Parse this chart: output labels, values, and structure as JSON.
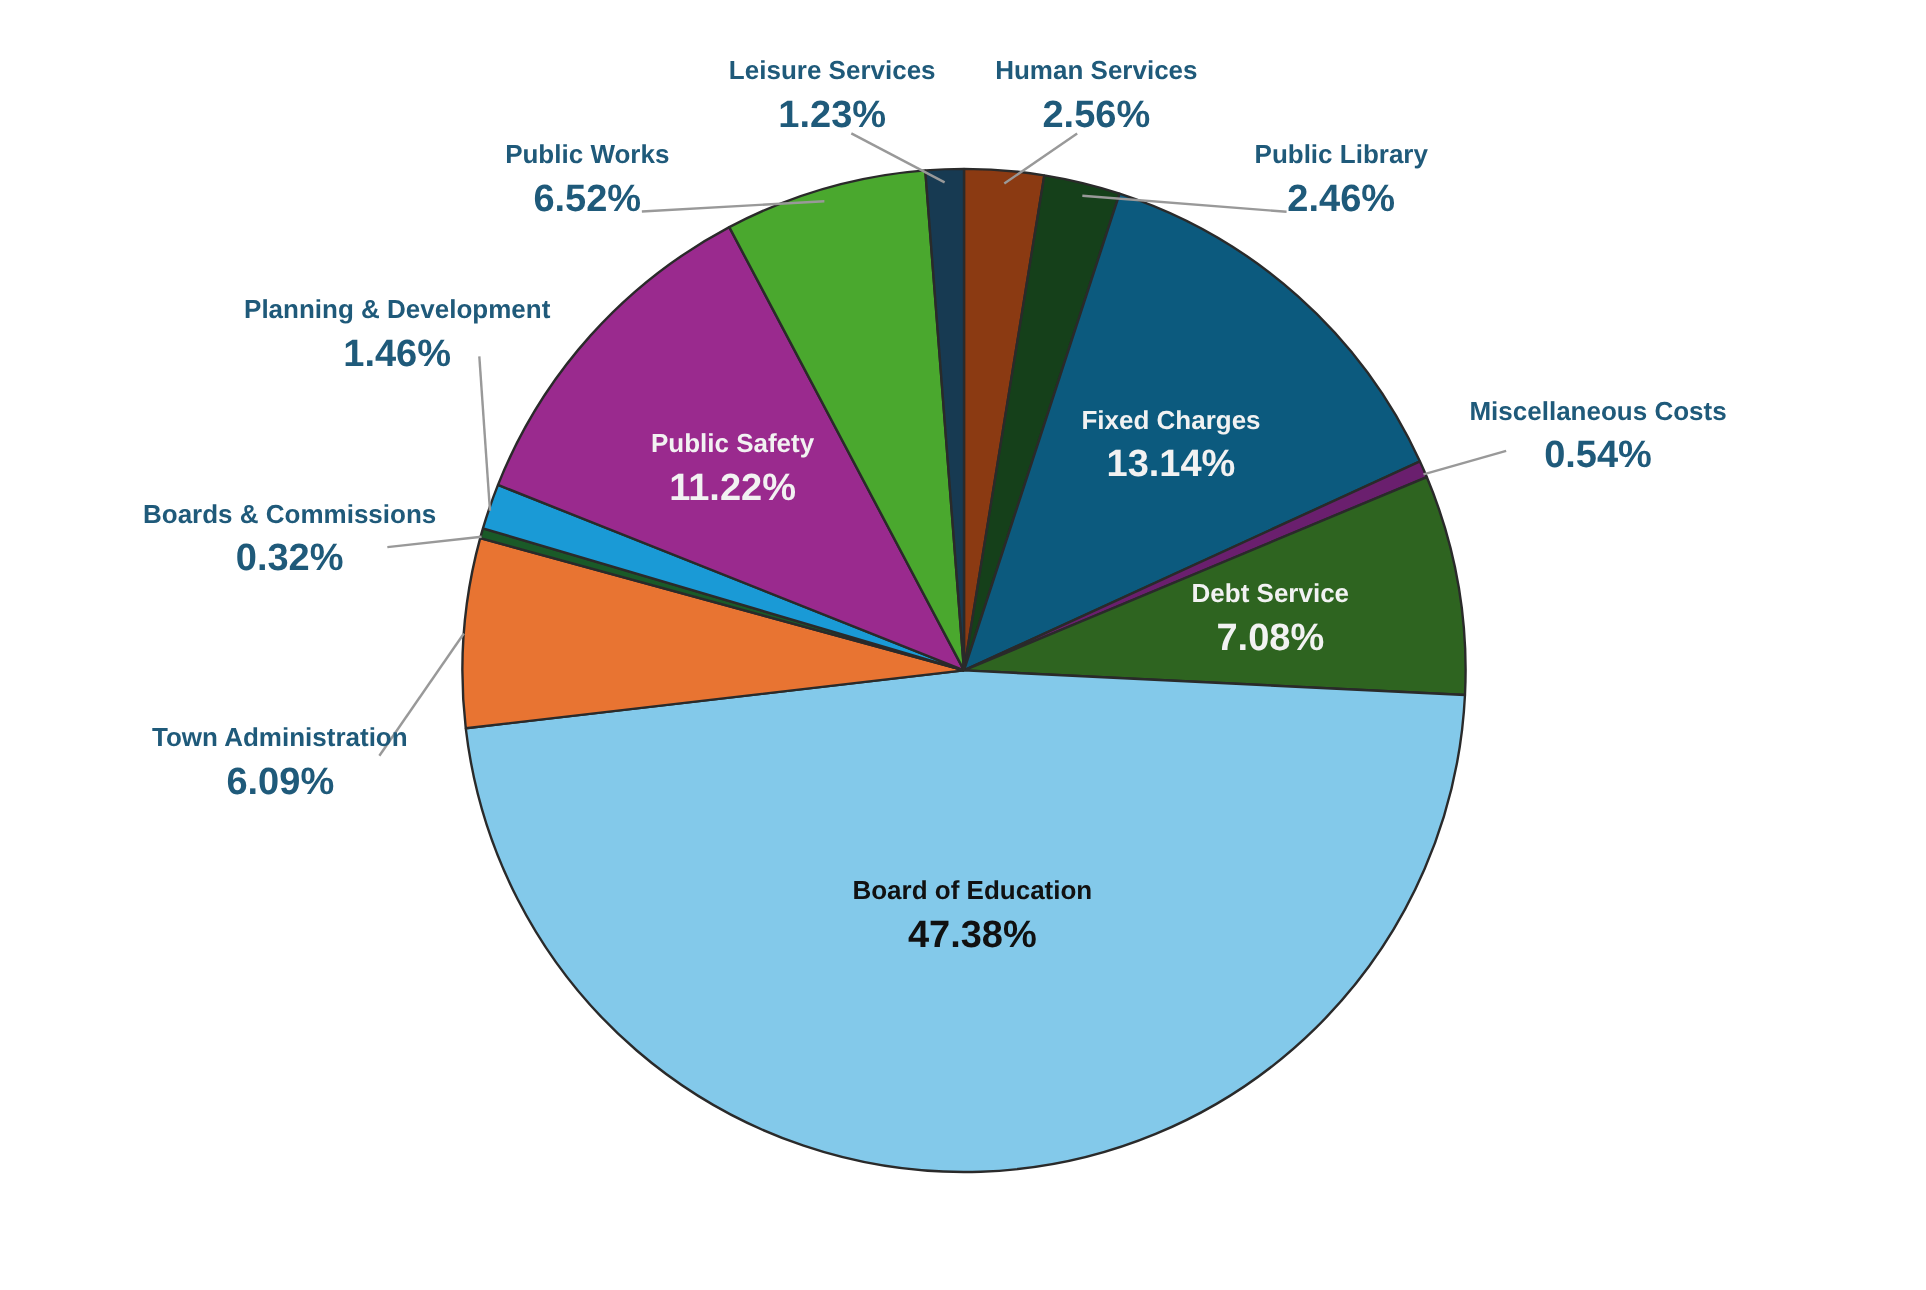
{
  "chart_data": {
    "type": "pie",
    "categories": [
      "Human Services",
      "Public Library",
      "Fixed Charges",
      "Miscellaneous Costs",
      "Debt Service",
      "Board of Education",
      "Town Administration",
      "Boards & Commissions",
      "Planning & Development",
      "Public Safety",
      "Public Works",
      "Leisure Services"
    ],
    "values": [
      2.56,
      2.46,
      13.14,
      0.54,
      7.08,
      47.38,
      6.09,
      0.32,
      1.46,
      11.22,
      6.52,
      1.23
    ],
    "colors": [
      "#8b3a12",
      "#15401a",
      "#0c5a7e",
      "#6a1f6e",
      "#2e6420",
      "#83c9ea",
      "#e87432",
      "#1a5a28",
      "#1a9ad6",
      "#9a2a8e",
      "#4aa82e",
      "#173a52"
    ],
    "value_labels": [
      "2.56%",
      "2.46%",
      "13.14%",
      "0.54%",
      "7.08%",
      "47.38%",
      "6.09%",
      "0.32%",
      "1.46%",
      "11.22%",
      "6.52%",
      "1.23%"
    ]
  }
}
